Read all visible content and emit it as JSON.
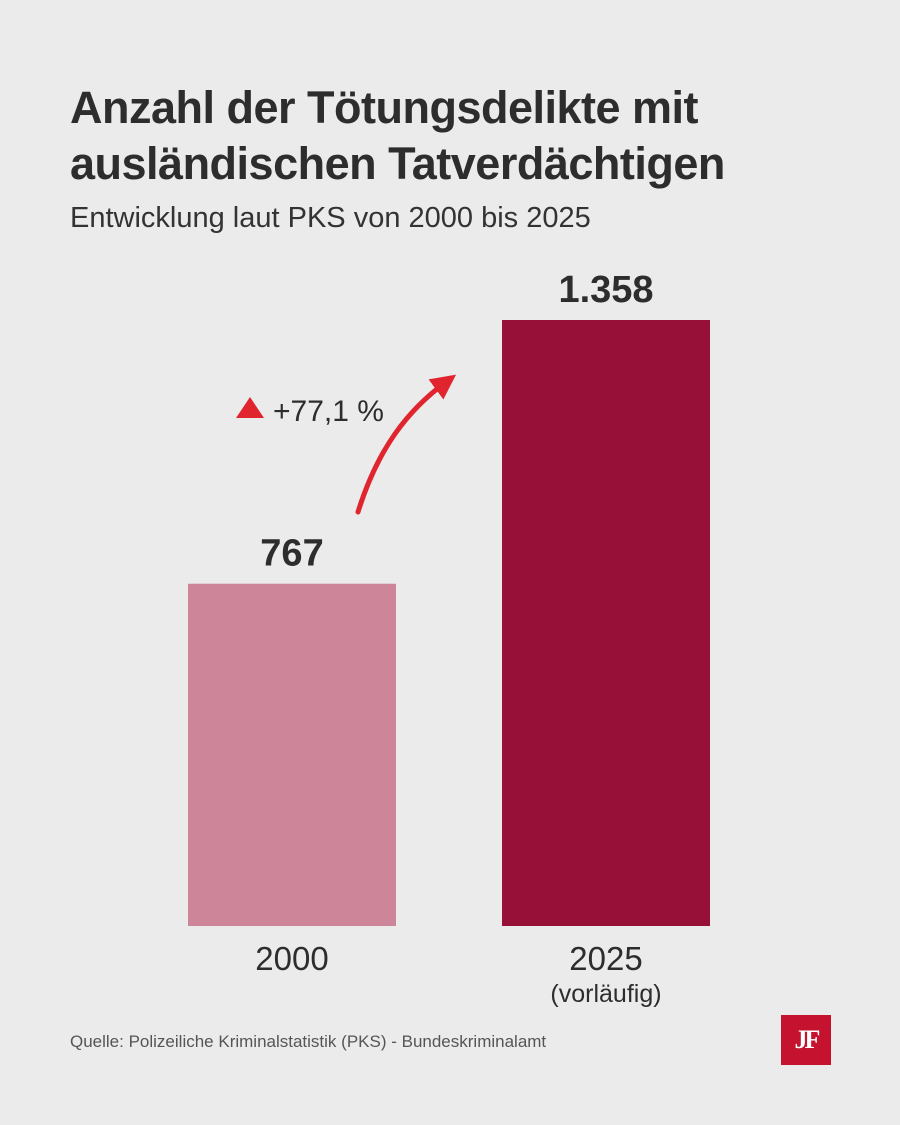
{
  "title": {
    "line1": "Anzahl der Tötungsdelikte mit",
    "line2": "ausländischen Tatverdächtigen"
  },
  "subtitle": "Entwicklung laut PKS von 2000 bis 2025",
  "chart_data": {
    "type": "bar",
    "categories": [
      "2000",
      "2025"
    ],
    "category_notes": [
      "",
      "(vorläufig)"
    ],
    "values": [
      767,
      1358
    ],
    "value_labels": [
      "767",
      "1.358"
    ],
    "colors": [
      "#cc8599",
      "#971038"
    ],
    "change_label": "+77,1 %",
    "change_color": "#e0252f",
    "ylim": [
      0,
      1358
    ],
    "grid": false
  },
  "source": "Quelle: Polizeiliche Kriminalstatistik (PKS) - Bundeskriminalamt",
  "logo": {
    "text": "JF",
    "color": "#c4122f"
  }
}
